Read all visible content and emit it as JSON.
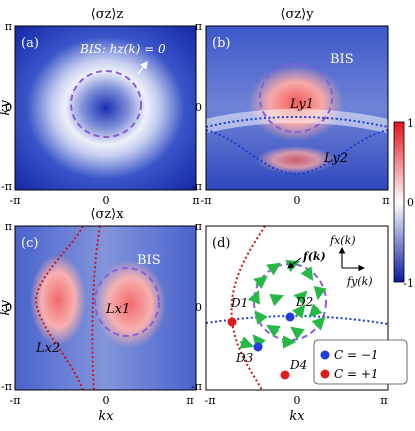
{
  "panels": {
    "a": {
      "title": "⟨σz⟩z",
      "tag": "(a)",
      "bis_label": "BIS: hz(k) = 0"
    },
    "b": {
      "title": "⟨σz⟩y",
      "tag": "(b)",
      "bis_label": "BIS",
      "L1": "Ly1",
      "L2": "Ly2"
    },
    "c": {
      "title": "⟨σz⟩x",
      "tag": "(c)",
      "bis_label": "BIS",
      "L1": "Lx1",
      "L2": "Lx2"
    },
    "d": {
      "tag": "(d)",
      "f_label": "f(k)",
      "fx_label": "fx(k)",
      "fy_label": "fy(k)",
      "D1": "D1",
      "D2": "D2",
      "D3": "D3",
      "D4": "D4"
    }
  },
  "axes": {
    "ky": "ky",
    "kx": "kx",
    "ticks": [
      "-π",
      "0",
      "π"
    ]
  },
  "colorbar": {
    "ticks": [
      "1",
      "0",
      "-1"
    ]
  },
  "legend": {
    "items": [
      {
        "label": "C = −1",
        "color": "#1f3de0"
      },
      {
        "label": "C = +1",
        "color": "#e01b1b"
      }
    ]
  },
  "colors": {
    "bis": "#8a5fd6",
    "line": "#1a3fd0",
    "redline": "#d41414",
    "arrow": "#25b845",
    "deep_blue": "#0a1fa8",
    "red": "#e31a1a"
  }
}
